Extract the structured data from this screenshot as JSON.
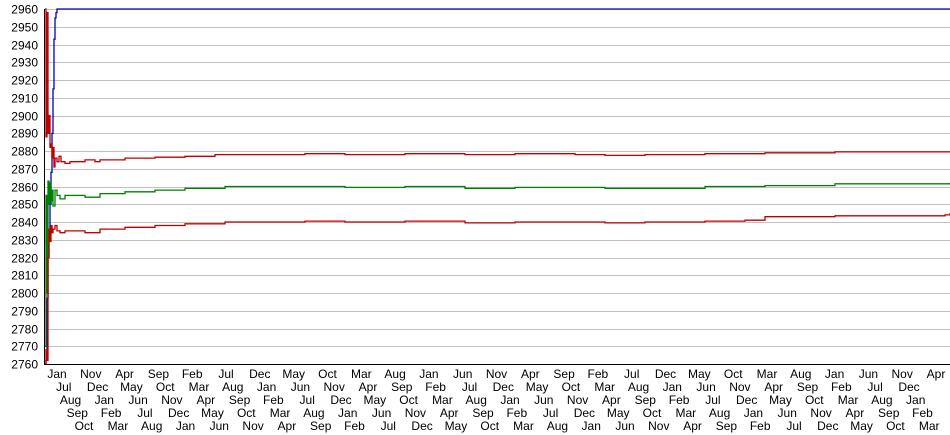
{
  "chart_data": {
    "type": "line",
    "title": "",
    "xlabel": "",
    "ylabel": "",
    "ylim": [
      2760,
      2960
    ],
    "yticks": [
      2760,
      2770,
      2780,
      2790,
      2800,
      2810,
      2820,
      2830,
      2840,
      2850,
      2860,
      2870,
      2880,
      2890,
      2900,
      2910,
      2920,
      2930,
      2940,
      2950,
      2960
    ],
    "grid": true,
    "legend": "none",
    "x_tick_labels": [
      "Jan",
      "Jul",
      "Aug",
      "Sep",
      "Oct",
      "Nov",
      "Dec",
      "Jan",
      "Feb",
      "Mar",
      "Apr",
      "May",
      "Jun",
      "Jul",
      "Aug",
      "Sep",
      "Oct",
      "Nov",
      "Dec",
      "Jan",
      "Feb",
      "Mar",
      "Apr",
      "May",
      "Jun",
      "Jul",
      "Aug",
      "Sep",
      "Oct",
      "Nov",
      "Dec",
      "Jan",
      "Feb",
      "Mar",
      "Apr",
      "May",
      "Jun",
      "Jul",
      "Aug",
      "Sep",
      "Oct",
      "Nov",
      "Dec",
      "Jan",
      "Feb",
      "Mar",
      "Apr",
      "May",
      "Jun",
      "Jul",
      "Aug",
      "Sep",
      "Oct",
      "Nov",
      "Dec",
      "Jan",
      "Feb",
      "Mar",
      "Apr",
      "May",
      "Jun",
      "Jul",
      "Aug",
      "Sep",
      "Oct",
      "Nov",
      "Dec",
      "Jan",
      "Feb",
      "Mar",
      "Apr",
      "May",
      "Jun",
      "Jul",
      "Aug",
      "Sep",
      "Oct",
      "Nov",
      "Dec",
      "Jan",
      "Feb",
      "Mar",
      "Apr",
      "May",
      "Jun",
      "Jul",
      "Aug",
      "Sep",
      "Oct",
      "Nov",
      "Dec",
      "Jan",
      "Feb",
      "Mar",
      "Apr",
      "May",
      "Jun",
      "Jul",
      "Aug",
      "Sep",
      "Oct",
      "Nov",
      "Dec",
      "Jan",
      "Feb",
      "Mar",
      "Apr",
      "May",
      "Jun",
      "Jul",
      "Aug",
      "Sep",
      "Oct",
      "Nov",
      "Dec",
      "Jan",
      "Feb",
      "Mar",
      "Apr",
      "May",
      "Jun",
      "Jul",
      "Aug",
      "Sep",
      "Oct",
      "Nov",
      "Dec",
      "Jan",
      "Feb",
      "Mar",
      "Apr"
    ],
    "x_range": [
      0,
      905
    ],
    "series": [
      {
        "color": "#0000c0",
        "points": [
          [
            0,
            2760
          ],
          [
            1,
            2762
          ],
          [
            2,
            2797
          ],
          [
            3,
            2820
          ],
          [
            4,
            2835
          ],
          [
            5,
            2850
          ],
          [
            6,
            2868
          ],
          [
            7,
            2890
          ],
          [
            8,
            2915
          ],
          [
            9,
            2943
          ],
          [
            10,
            2955
          ],
          [
            11,
            2958
          ],
          [
            12,
            2960
          ],
          [
            905,
            2960
          ]
        ]
      },
      {
        "color": "#c00000",
        "points": [
          [
            0,
            2960
          ],
          [
            1,
            2888
          ],
          [
            2,
            2958
          ],
          [
            3,
            2890
          ],
          [
            4,
            2900
          ],
          [
            5,
            2882
          ],
          [
            6,
            2884
          ],
          [
            7,
            2876
          ],
          [
            8,
            2882
          ],
          [
            9,
            2871
          ],
          [
            10,
            2876
          ],
          [
            12,
            2874
          ],
          [
            14,
            2877
          ],
          [
            16,
            2874
          ],
          [
            20,
            2873
          ],
          [
            25,
            2874
          ],
          [
            30,
            2874
          ],
          [
            40,
            2875
          ],
          [
            50,
            2874
          ],
          [
            55,
            2875
          ],
          [
            80,
            2876
          ],
          [
            110,
            2876.5
          ],
          [
            140,
            2877
          ],
          [
            170,
            2878
          ],
          [
            260,
            2878.5
          ],
          [
            300,
            2878
          ],
          [
            360,
            2878.5
          ],
          [
            420,
            2878
          ],
          [
            470,
            2878.5
          ],
          [
            530,
            2878
          ],
          [
            560,
            2877.5
          ],
          [
            600,
            2878
          ],
          [
            660,
            2878.5
          ],
          [
            720,
            2879
          ],
          [
            790,
            2879.5
          ],
          [
            905,
            2879.5
          ]
        ]
      },
      {
        "color": "#008000",
        "points": [
          [
            0,
            2770
          ],
          [
            1,
            2855
          ],
          [
            2,
            2800
          ],
          [
            3,
            2863
          ],
          [
            4,
            2850
          ],
          [
            5,
            2862
          ],
          [
            6,
            2852
          ],
          [
            7,
            2858
          ],
          [
            8,
            2849
          ],
          [
            10,
            2858
          ],
          [
            12,
            2855
          ],
          [
            15,
            2853
          ],
          [
            20,
            2855
          ],
          [
            30,
            2855
          ],
          [
            40,
            2854
          ],
          [
            55,
            2856
          ],
          [
            80,
            2857
          ],
          [
            110,
            2858
          ],
          [
            140,
            2859
          ],
          [
            180,
            2860
          ],
          [
            260,
            2860
          ],
          [
            300,
            2859.5
          ],
          [
            360,
            2860
          ],
          [
            420,
            2859
          ],
          [
            470,
            2859.5
          ],
          [
            530,
            2859.5
          ],
          [
            560,
            2859
          ],
          [
            600,
            2859
          ],
          [
            660,
            2860
          ],
          [
            720,
            2860.5
          ],
          [
            790,
            2861.5
          ],
          [
            905,
            2862
          ]
        ]
      },
      {
        "color": "#c00000",
        "points": [
          [
            0,
            2760
          ],
          [
            1,
            2768
          ],
          [
            2,
            2762
          ],
          [
            3,
            2820
          ],
          [
            4,
            2836
          ],
          [
            5,
            2829
          ],
          [
            6,
            2838
          ],
          [
            7,
            2834
          ],
          [
            8,
            2836
          ],
          [
            10,
            2838
          ],
          [
            12,
            2835
          ],
          [
            15,
            2834
          ],
          [
            20,
            2835
          ],
          [
            30,
            2835
          ],
          [
            40,
            2834
          ],
          [
            55,
            2836
          ],
          [
            80,
            2837
          ],
          [
            110,
            2838
          ],
          [
            140,
            2839
          ],
          [
            180,
            2840
          ],
          [
            260,
            2840.5
          ],
          [
            300,
            2840
          ],
          [
            360,
            2840.5
          ],
          [
            420,
            2839.5
          ],
          [
            470,
            2840
          ],
          [
            530,
            2840
          ],
          [
            560,
            2839.5
          ],
          [
            600,
            2840
          ],
          [
            660,
            2840.5
          ],
          [
            700,
            2841
          ],
          [
            720,
            2843
          ],
          [
            790,
            2843.5
          ],
          [
            900,
            2844
          ],
          [
            905,
            2845
          ]
        ]
      }
    ]
  }
}
